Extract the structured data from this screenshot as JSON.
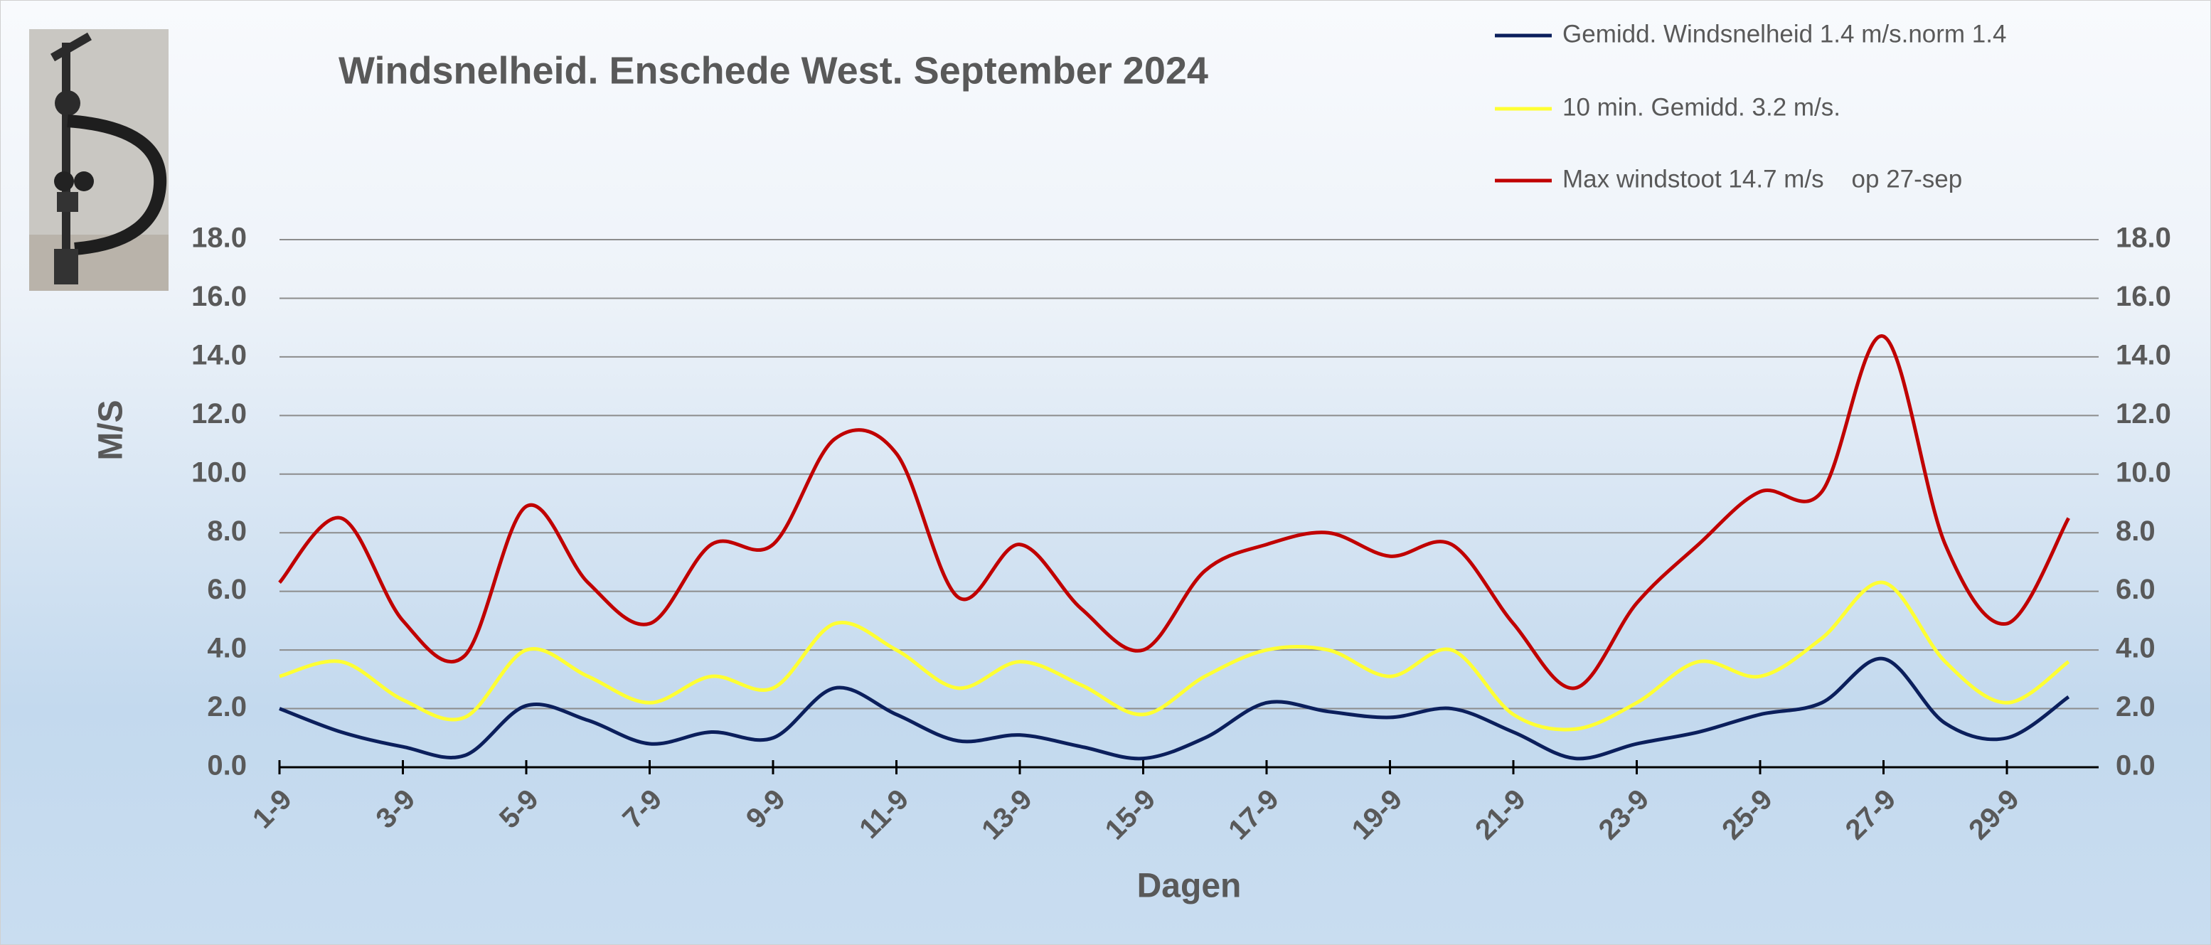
{
  "chart_data": {
    "type": "line",
    "title": "Windsnelheid. Enschede West. September 2024",
    "x_label": "Dagen",
    "y_label": "M/S",
    "categories": [
      "1-9",
      null,
      "3-9",
      null,
      "5-9",
      null,
      "7-9",
      null,
      "9-9",
      null,
      "11-9",
      null,
      "13-9",
      null,
      "15-9",
      null,
      "17-9",
      null,
      "19-9",
      null,
      "21-9",
      null,
      "23-9",
      null,
      "25-9",
      null,
      "27-9",
      null,
      "29-9",
      null
    ],
    "series": [
      {
        "name": "Gemidd. Windsnelheid 1.4 m/s.norm 1.4",
        "color": "#0b1f5c",
        "values": [
          2.0,
          1.2,
          0.7,
          0.4,
          2.1,
          1.6,
          0.8,
          1.2,
          1.0,
          2.7,
          1.8,
          0.9,
          1.1,
          0.7,
          0.3,
          1.0,
          2.2,
          1.9,
          1.7,
          2.0,
          1.2,
          0.3,
          0.8,
          1.2,
          1.8,
          2.2,
          3.7,
          1.5,
          1.0,
          2.4
        ]
      },
      {
        "name": "10 min. Gemidd. 3.2 m/s.",
        "color": "#ffff33",
        "values": [
          3.1,
          3.6,
          2.3,
          1.7,
          4.0,
          3.1,
          2.2,
          3.1,
          2.7,
          4.9,
          4.0,
          2.7,
          3.6,
          2.8,
          1.8,
          3.1,
          4.0,
          4.0,
          3.1,
          4.0,
          1.8,
          1.3,
          2.2,
          3.6,
          3.1,
          4.4,
          6.3,
          3.6,
          2.2,
          3.6
        ]
      },
      {
        "name": "Max windstoot 14.7 m/s    op 27-sep",
        "color": "#c00000",
        "values": [
          6.3,
          8.5,
          5.0,
          3.8,
          8.9,
          6.3,
          4.9,
          7.6,
          7.6,
          11.2,
          10.7,
          5.8,
          7.6,
          5.4,
          4.0,
          6.7,
          7.6,
          8.0,
          7.2,
          7.6,
          4.9,
          2.7,
          5.6,
          7.6,
          9.4,
          9.4,
          14.7,
          7.6,
          4.9,
          8.5
        ]
      }
    ],
    "ylim": [
      0,
      18
    ],
    "yticks": [
      {
        "value": 0,
        "label": "0.0"
      },
      {
        "value": 2,
        "label": "2.0"
      },
      {
        "value": 4,
        "label": "4.0"
      },
      {
        "value": 6,
        "label": "6.0"
      },
      {
        "value": 8,
        "label": "8.0"
      },
      {
        "value": 10,
        "label": "10.0"
      },
      {
        "value": 12,
        "label": "12.0"
      },
      {
        "value": 14,
        "label": "14.0"
      },
      {
        "value": 16,
        "label": "16.0"
      },
      {
        "value": 18,
        "label": "18.0"
      }
    ],
    "y2lim": [
      0,
      18
    ],
    "y2ticks": [
      {
        "value": 0,
        "label": "0.0"
      },
      {
        "value": 2,
        "label": "2.0"
      },
      {
        "value": 4,
        "label": "4.0"
      },
      {
        "value": 6,
        "label": "6.0"
      },
      {
        "value": 8,
        "label": "8.0"
      },
      {
        "value": 10,
        "label": "10.0"
      },
      {
        "value": 12,
        "label": "12.0"
      },
      {
        "value": 14,
        "label": "14.0"
      },
      {
        "value": 16,
        "label": "16.0"
      },
      {
        "value": 18,
        "label": "18.0"
      }
    ],
    "grid": true,
    "legend": "top-right"
  }
}
